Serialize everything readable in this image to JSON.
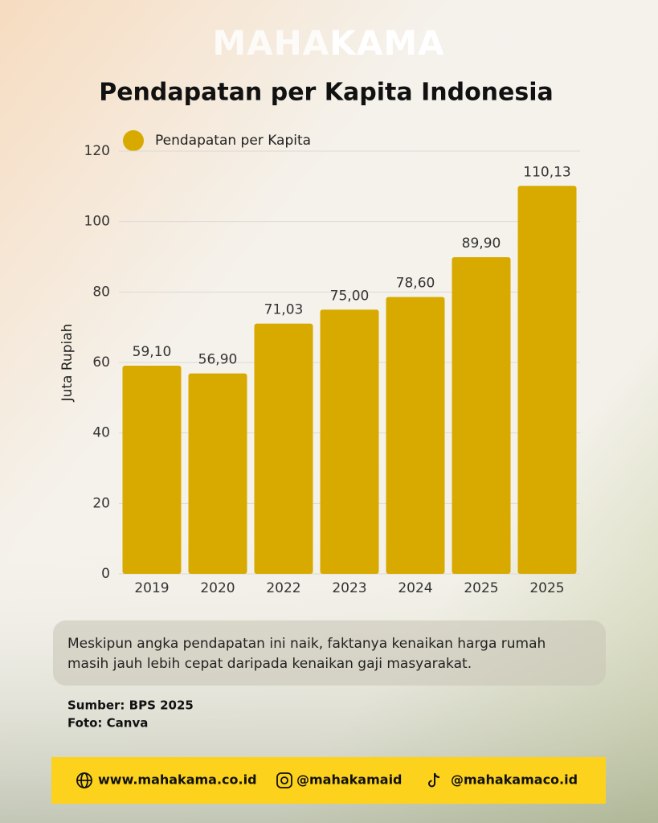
{
  "brand": {
    "left": "MAHA",
    "right": "KAMA"
  },
  "chart_data": {
    "type": "bar",
    "title": "Pendapatan per Kapita Indonesia",
    "y_label": "Juta Rupiah",
    "categories": [
      "2019",
      "2020",
      "2022",
      "2023",
      "2024",
      "2025",
      "2025"
    ],
    "series": [
      {
        "name": "Pendapatan per Kapita",
        "color": "#d8aa00",
        "values": [
          59.1,
          56.9,
          71.03,
          75,
          78.6,
          89.9,
          110.13
        ],
        "value_labels": [
          "59,10",
          "56,90",
          "71,03",
          "75,00",
          "78,60",
          "89,90",
          "110,13"
        ]
      }
    ],
    "ylim": [
      0,
      120
    ],
    "yticks": [
      0,
      20,
      40,
      60,
      80,
      100,
      120
    ],
    "grid": true
  },
  "note": {
    "line1": "Meskipun angka pendapatan ini naik, faktanya kenaikan harga rumah",
    "line2": "masih jauh lebih cepat daripada kenaikan gaji masyarakat."
  },
  "source": "Sumber: BPS 2025",
  "photo": "Foto: Canva",
  "footer": {
    "website": "www.mahakama.co.id",
    "instagram": "@mahakamaid",
    "tiktok": "@mahakamaco.id"
  }
}
